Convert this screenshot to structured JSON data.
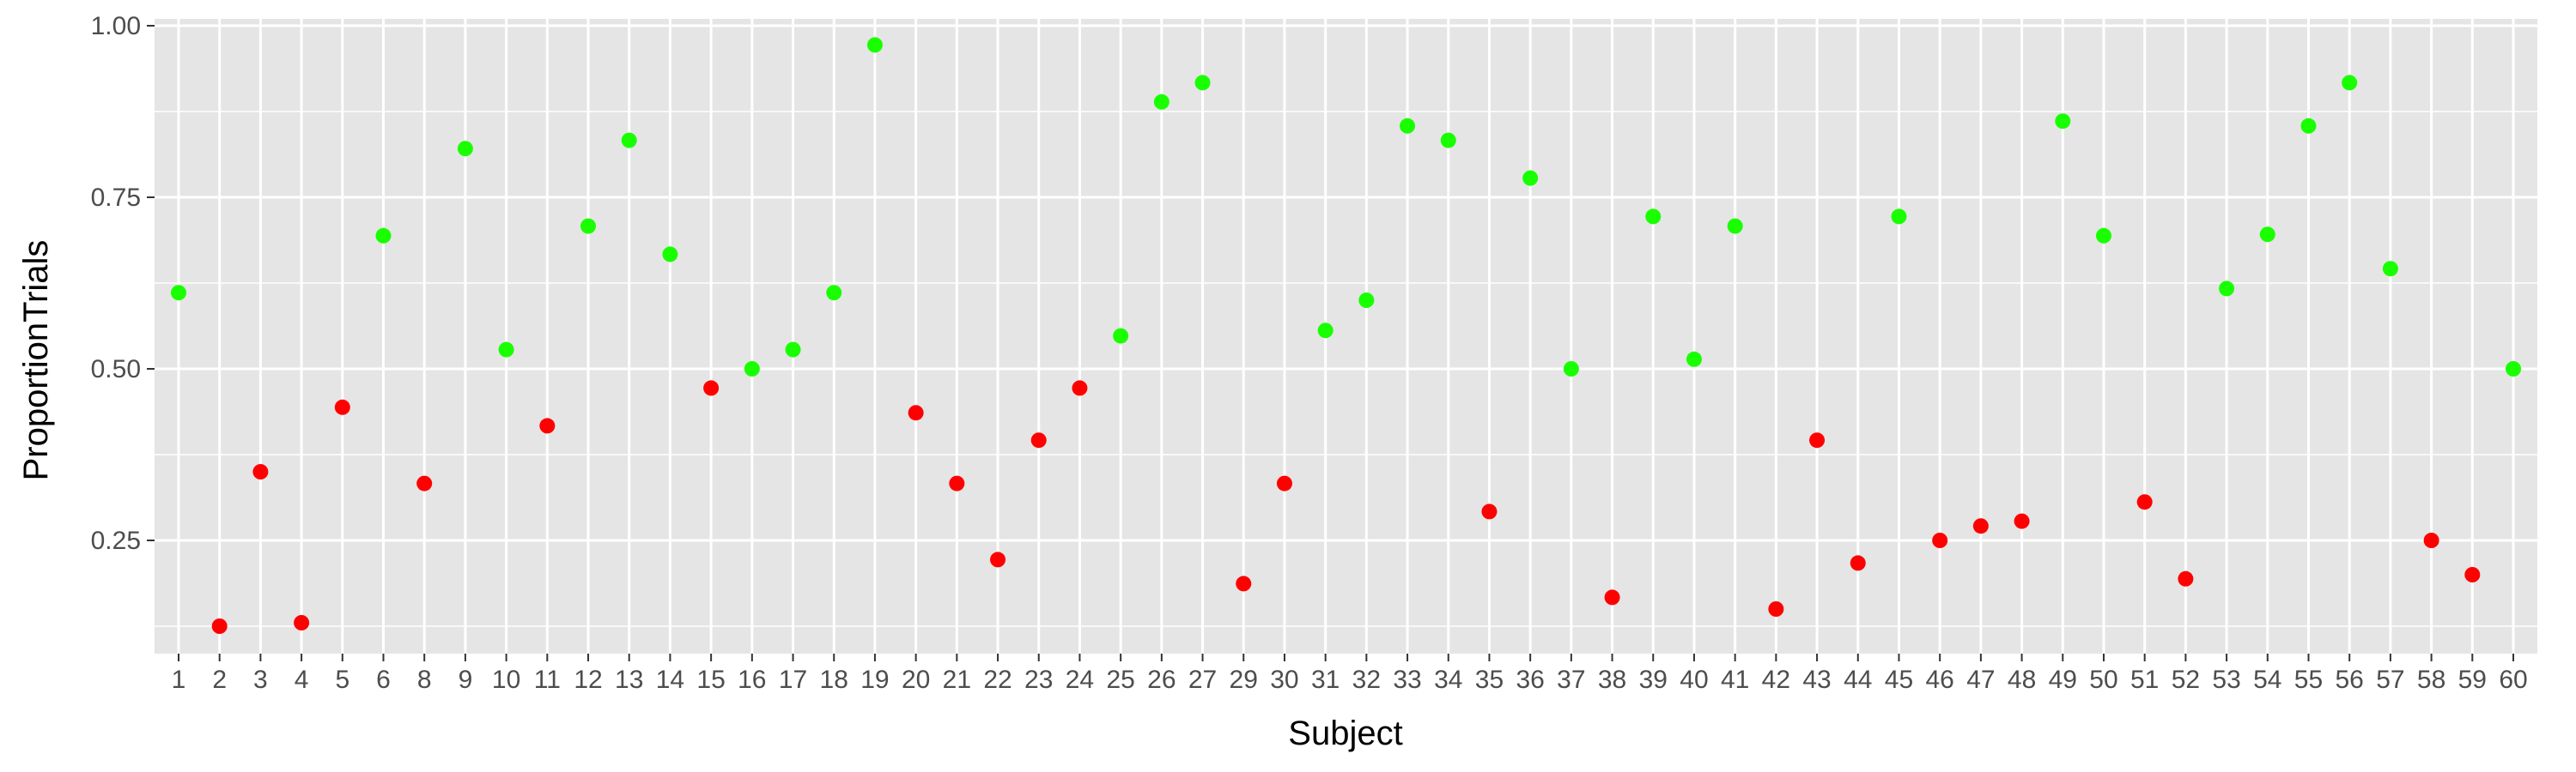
{
  "chart_data": {
    "type": "scatter",
    "xlabel": "Subject",
    "ylabel": "ProportionTrials",
    "categories": [
      "1",
      "2",
      "3",
      "4",
      "5",
      "6",
      "8",
      "9",
      "10",
      "11",
      "12",
      "13",
      "14",
      "15",
      "16",
      "17",
      "18",
      "19",
      "20",
      "21",
      "22",
      "23",
      "24",
      "25",
      "26",
      "27",
      "29",
      "30",
      "31",
      "32",
      "33",
      "34",
      "35",
      "36",
      "37",
      "38",
      "39",
      "40",
      "41",
      "42",
      "43",
      "44",
      "45",
      "46",
      "47",
      "48",
      "49",
      "50",
      "51",
      "52",
      "53",
      "54",
      "55",
      "56",
      "57",
      "58",
      "59",
      "60"
    ],
    "values": [
      0.611,
      0.125,
      0.35,
      0.13,
      0.444,
      0.694,
      0.333,
      0.821,
      0.528,
      0.417,
      0.708,
      0.833,
      0.667,
      0.472,
      0.5,
      0.528,
      0.611,
      0.972,
      0.436,
      0.333,
      0.222,
      0.396,
      0.472,
      0.548,
      0.889,
      0.917,
      0.187,
      0.333,
      0.556,
      0.6,
      0.854,
      0.833,
      0.292,
      0.778,
      0.5,
      0.167,
      0.722,
      0.514,
      0.708,
      0.15,
      0.396,
      0.217,
      0.722,
      0.25,
      0.271,
      0.278,
      0.861,
      0.694,
      0.306,
      0.194,
      0.617,
      0.696,
      0.854,
      0.917,
      0.646,
      0.25,
      0.2,
      0.5
    ],
    "point_colors": {
      "above_or_equal_half": "#19ff00",
      "below_half": "#ff0000"
    },
    "threshold": 0.5,
    "ylim": [
      0.085,
      1.01
    ],
    "yticks": [
      0.25,
      0.5,
      0.75,
      1.0
    ],
    "ytick_labels": [
      "0.25",
      "0.50",
      "0.75",
      "1.00"
    ],
    "grid": true,
    "legend": "none",
    "panel_background": "#e5e5e5",
    "grid_color": "#ffffff"
  }
}
